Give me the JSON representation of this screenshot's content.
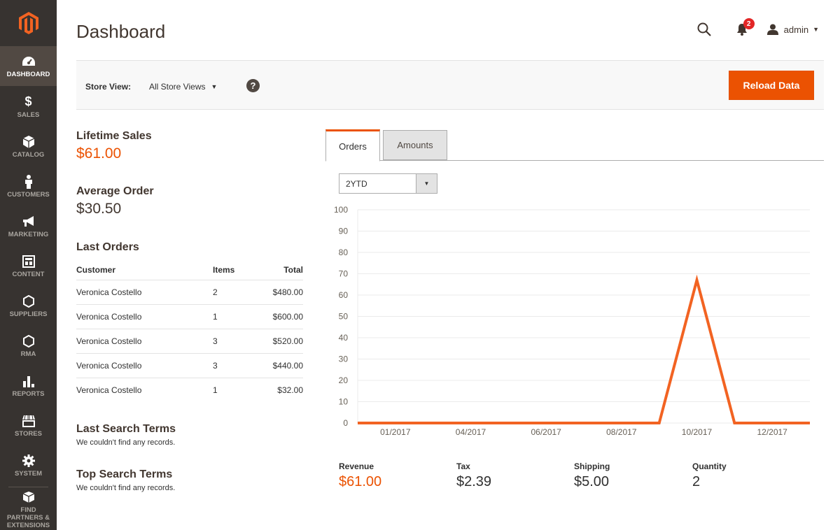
{
  "sidebar": {
    "items": [
      {
        "label": "DASHBOARD",
        "icon": "dashboard-icon"
      },
      {
        "label": "SALES",
        "icon": "dollar-icon"
      },
      {
        "label": "CATALOG",
        "icon": "cube-icon"
      },
      {
        "label": "CUSTOMERS",
        "icon": "person-icon"
      },
      {
        "label": "MARKETING",
        "icon": "megaphone-icon"
      },
      {
        "label": "CONTENT",
        "icon": "layout-icon"
      },
      {
        "label": "SUPPLIERS",
        "icon": "hexagon-icon"
      },
      {
        "label": "RMA",
        "icon": "hexagon-icon"
      },
      {
        "label": "REPORTS",
        "icon": "bar-chart-icon"
      },
      {
        "label": "STORES",
        "icon": "store-icon"
      },
      {
        "label": "SYSTEM",
        "icon": "gear-icon"
      },
      {
        "label": "FIND PARTNERS & EXTENSIONS",
        "icon": "box-icon"
      }
    ]
  },
  "header": {
    "title": "Dashboard",
    "notification_count": "2",
    "user": "admin"
  },
  "store_bar": {
    "label": "Store View:",
    "selected": "All Store Views",
    "help": "?",
    "reload_label": "Reload Data"
  },
  "stats": {
    "lifetime_label": "Lifetime Sales",
    "lifetime_value": "$61.00",
    "average_label": "Average Order",
    "average_value": "$30.50"
  },
  "last_orders": {
    "title": "Last Orders",
    "columns": [
      "Customer",
      "Items",
      "Total"
    ],
    "rows": [
      [
        "Veronica Costello",
        "2",
        "$480.00"
      ],
      [
        "Veronica Costello",
        "1",
        "$600.00"
      ],
      [
        "Veronica Costello",
        "3",
        "$520.00"
      ],
      [
        "Veronica Costello",
        "3",
        "$440.00"
      ],
      [
        "Veronica Costello",
        "1",
        "$32.00"
      ]
    ]
  },
  "last_search": {
    "title": "Last Search Terms",
    "empty": "We couldn't find any records."
  },
  "top_search": {
    "title": "Top Search Terms",
    "empty": "We couldn't find any records."
  },
  "tabs": {
    "orders": "Orders",
    "amounts": "Amounts"
  },
  "period": {
    "selected": "2YTD"
  },
  "chart_data": {
    "type": "line",
    "x": [
      "",
      "01/2017",
      "",
      "04/2017",
      "",
      "06/2017",
      "",
      "08/2017",
      "",
      "10/2017",
      "",
      "12/2017",
      ""
    ],
    "tick_labels": [
      "01/2017",
      "04/2017",
      "06/2017",
      "08/2017",
      "10/2017",
      "12/2017"
    ],
    "series": [
      {
        "values": [
          0,
          0,
          0,
          0,
          0,
          0,
          0,
          0,
          0,
          67,
          0,
          0,
          0
        ]
      }
    ],
    "ylim": [
      0,
      100
    ],
    "yticks": [
      0,
      10,
      20,
      30,
      40,
      50,
      60,
      70,
      80,
      90,
      100
    ],
    "grid": true,
    "color": "#f26322"
  },
  "totals": [
    {
      "label": "Revenue",
      "value": "$61.00"
    },
    {
      "label": "Tax",
      "value": "$2.39"
    },
    {
      "label": "Shipping",
      "value": "$5.00"
    },
    {
      "label": "Quantity",
      "value": "2"
    }
  ],
  "colors": {
    "accent": "#eb5202",
    "sidebar": "#373330",
    "sidebar_active": "#514943"
  }
}
